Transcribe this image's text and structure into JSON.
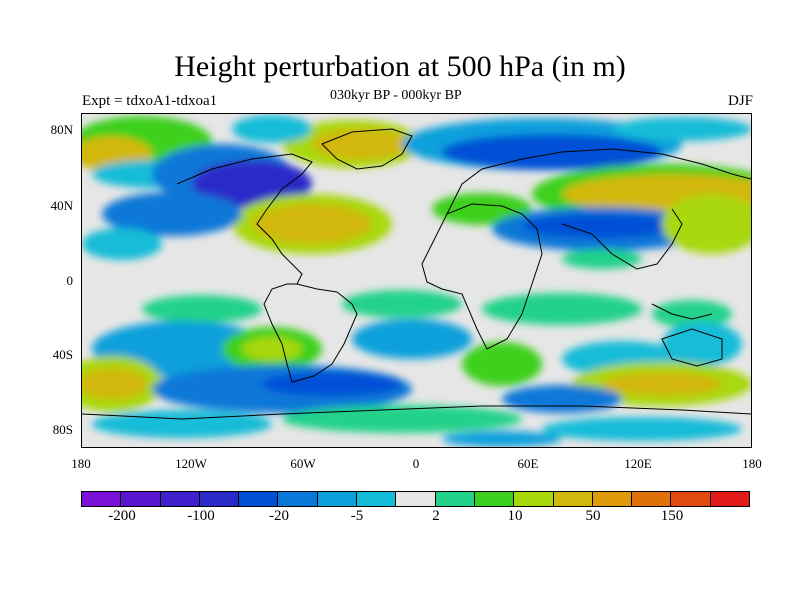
{
  "title": "Height perturbation at 500 hPa (in m)",
  "left_label": "Expt = tdxoA1-tdxoa1",
  "center_label": "030kyr BP - 000kyr BP",
  "right_label": "DJF",
  "lat_labels": [
    "80N",
    "40N",
    "0",
    "40S",
    "80S"
  ],
  "lon_labels": [
    "180",
    "120W",
    "60W",
    "0",
    "60E",
    "120E",
    "180"
  ],
  "colorbar": {
    "colors": [
      "#7a10d8",
      "#5a16cf",
      "#4020cc",
      "#2a2ac9",
      "#0050d6",
      "#0a78d8",
      "#0aa0dc",
      "#12bcd8",
      "#e6e6e6",
      "#22d28a",
      "#3cd01e",
      "#a8d80a",
      "#d2b80c",
      "#de9a0a",
      "#e07008",
      "#e04a10",
      "#e01a16"
    ],
    "labels": [
      "-200",
      "-100",
      "-20",
      "-5",
      "2",
      "10",
      "50",
      "150"
    ]
  }
}
